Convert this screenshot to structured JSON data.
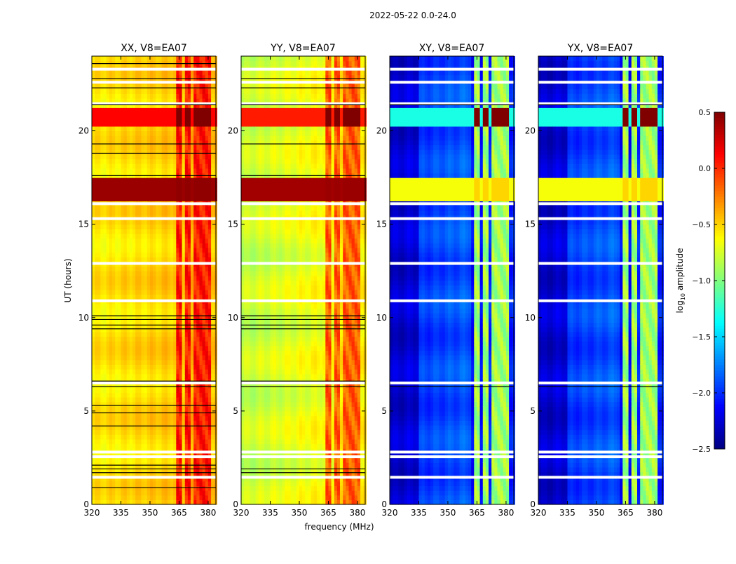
{
  "chart_data": {
    "type": "heatmap",
    "title": "2022-05-22 0.0-24.0",
    "xlabel": "frequency (MHz)",
    "ylabel": "UT (hours)",
    "xlim": [
      320,
      384
    ],
    "ylim": [
      0,
      24
    ],
    "xticks": [
      320,
      335,
      350,
      365,
      380
    ],
    "yticks": [
      0,
      5,
      10,
      15,
      20
    ],
    "colorbar": {
      "label": "log10 amplitude",
      "range": [
        -2.5,
        0.5
      ],
      "ticks": [
        "0.5",
        "0.0",
        "−0.5",
        "−1.0",
        "−1.5",
        "−2.0",
        "−2.5"
      ],
      "colormap": "jet"
    },
    "rfi_channels_mhz": [
      [
        363,
        367
      ],
      [
        368,
        371.5
      ],
      [
        373,
        376.5
      ],
      [
        377.5,
        381
      ]
    ],
    "flagged_rows_ut": [
      1.45,
      2.55,
      2.8,
      6.5,
      10.9,
      12.9,
      15.3,
      16.1,
      21.45,
      22.6,
      23.3
    ],
    "panels": [
      {
        "title": "XX, V8=EA07",
        "base_low": -0.58,
        "base_high": -0.42,
        "rfi_level": 0.05,
        "bands": [
          {
            "t": [
              16.25,
              17.5
            ],
            "level": 0.42,
            "rfi_level": 0.45
          },
          {
            "t": [
              20.3,
              21.3
            ],
            "level": 0.12,
            "rfi_level": 0.5
          }
        ],
        "black_lines_ut": [
          0.9,
          1.7,
          1.9,
          2.1,
          4.2,
          4.9,
          5.3,
          6.3,
          6.6,
          9.4,
          9.6,
          9.9,
          10.1,
          17.6,
          18.8,
          19.3,
          21.4,
          22.3,
          22.8,
          23.6
        ]
      },
      {
        "title": "YY, V8=EA07",
        "base_low": -0.82,
        "base_high": -0.55,
        "rfi_level": -0.15,
        "bands": [
          {
            "t": [
              16.25,
              17.5
            ],
            "level": 0.4,
            "rfi_level": 0.42
          },
          {
            "t": [
              20.3,
              21.3
            ],
            "level": 0.05,
            "rfi_level": 0.5
          }
        ],
        "black_lines_ut": [
          1.7,
          1.9,
          6.3,
          6.6,
          9.4,
          9.6,
          9.9,
          10.1,
          17.6,
          19.3,
          21.4,
          22.3,
          22.8
        ]
      },
      {
        "title": "XY, V8=EA07",
        "base_low": -2.3,
        "base_high": -2.0,
        "rfi_level": -0.9,
        "bands": [
          {
            "t": [
              16.3,
              17.5
            ],
            "level": -0.65,
            "rfi_level": -0.5
          },
          {
            "t": [
              20.3,
              21.25
            ],
            "level": -1.3,
            "rfi_level": 0.5
          }
        ],
        "black_lines_ut": [
          6.3,
          21.4
        ]
      },
      {
        "title": "YX, V8=EA07",
        "base_low": -2.3,
        "base_high": -2.0,
        "rfi_level": -0.9,
        "bands": [
          {
            "t": [
              16.3,
              17.5
            ],
            "level": -0.65,
            "rfi_level": -0.5
          },
          {
            "t": [
              20.3,
              21.25
            ],
            "level": -1.3,
            "rfi_level": 0.5
          }
        ],
        "black_lines_ut": [
          6.3,
          21.4
        ]
      }
    ]
  }
}
